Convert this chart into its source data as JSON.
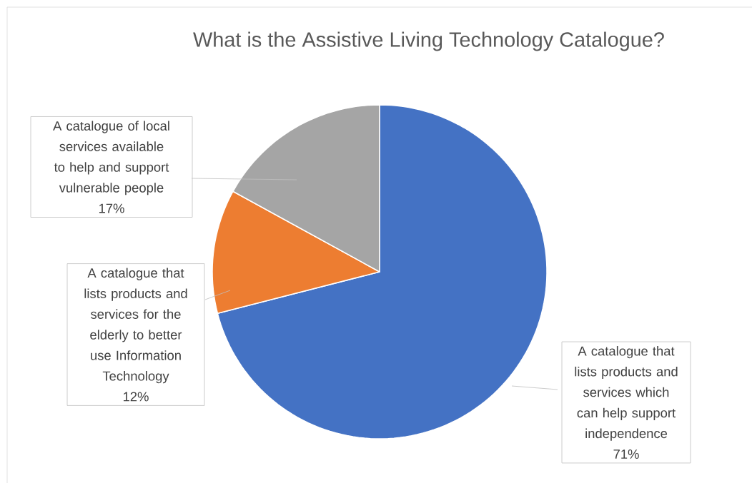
{
  "chart_data": {
    "type": "pie",
    "title": "What is the Assistive Living Technology Catalogue?",
    "categories": [
      "A catalogue that lists products and services which can help support independence",
      "A catalogue that lists products and services for the elderly to better use Information Technology",
      "A catalogue of local services available to help and support vulnerable people"
    ],
    "values": [
      71,
      12,
      17
    ],
    "colors": [
      "#4472c4",
      "#ed7d31",
      "#a5a5a5"
    ],
    "value_labels": [
      "71%",
      "12%",
      "17%"
    ]
  }
}
